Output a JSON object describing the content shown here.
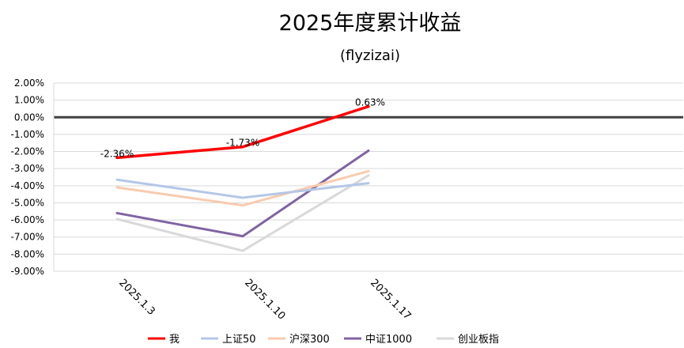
{
  "chart_data": {
    "type": "line",
    "title": "2025年度累计收益",
    "subtitle": "(flyzizai)",
    "categories": [
      "2025.1.3",
      "2025.1.10",
      "2025.1.17"
    ],
    "ylim": [
      -9,
      2
    ],
    "ytick_step": 1,
    "ytick_labels": [
      "2.00%",
      "1.00%",
      "0.00%",
      "-1.00%",
      "-2.00%",
      "-3.00%",
      "-4.00%",
      "-5.00%",
      "-6.00%",
      "-7.00%",
      "-8.00%",
      "-9.00%"
    ],
    "grid": true,
    "legend_position": "bottom",
    "series": [
      {
        "name": "我",
        "color": "#ff0000",
        "values": [
          -2.36,
          -1.73,
          0.63
        ],
        "labels": [
          "-2.36%",
          "-1.73%",
          "0.63%"
        ]
      },
      {
        "name": "上证50",
        "color": "#b4c7e7",
        "values": [
          -3.65,
          -4.7,
          -3.85
        ]
      },
      {
        "name": "沪深300",
        "color": "#f8cbad",
        "values": [
          -4.1,
          -5.15,
          -3.15
        ]
      },
      {
        "name": "中证1000",
        "color": "#8064a2",
        "values": [
          -5.6,
          -6.95,
          -1.95
        ]
      },
      {
        "name": "创业板指",
        "color": "#d9d9d9",
        "values": [
          -5.95,
          -7.8,
          -3.4
        ]
      }
    ]
  }
}
